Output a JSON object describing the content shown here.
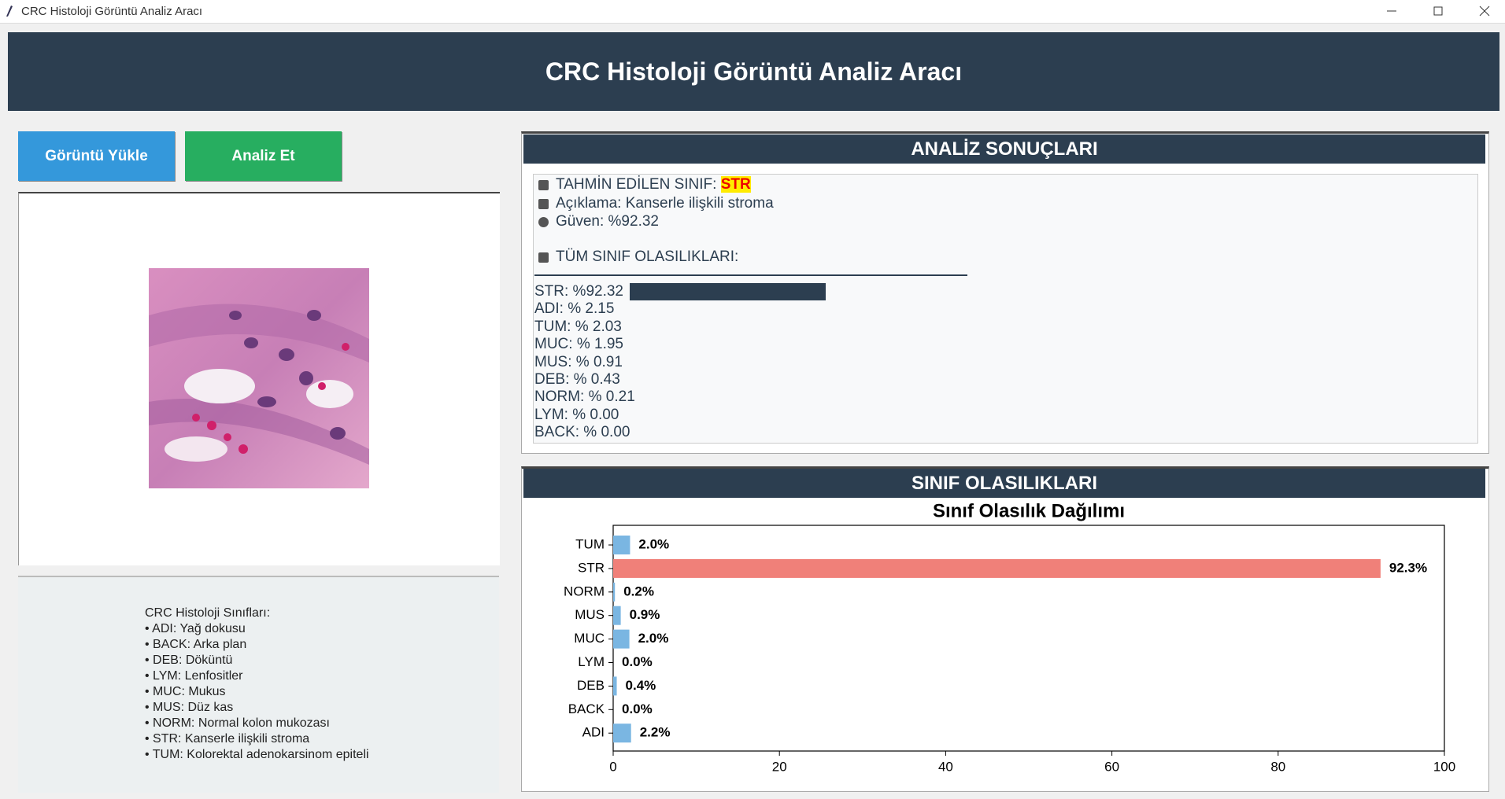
{
  "window": {
    "title": "CRC Histoloji Görüntü Analiz Aracı"
  },
  "header": {
    "title": "CRC Histoloji Görüntü Analiz Aracı"
  },
  "buttons": [
    "Görüntü Yükle",
    "Analiz Et"
  ],
  "class_info": {
    "heading": "CRC Histoloji Sınıfları:",
    "items": [
      "• ADI: Yağ dokusu",
      "• BACK: Arka plan",
      "• DEB: Döküntü",
      "• LYM: Lenfositler",
      "• MUC: Mukus",
      "• MUS: Düz kas",
      "• NORM: Normal kolon mukozası",
      "• STR: Kanserle ilişkili stroma",
      "• TUM: Kolorektal adenokarsinom epiteli"
    ]
  },
  "results": {
    "title": "ANALİZ SONUÇLARI",
    "predicted_label": "TAHMİN EDİLEN SINIF:",
    "predicted_class": "STR",
    "description": "Açıklama: Kanserle ilişkili stroma",
    "confidence": "Güven: %92.32",
    "all_title": "TÜM SINIF OLASILIKLARI:",
    "probabilities": [
      "STR: %92.32",
      "ADI: % 2.15",
      "TUM: % 2.03",
      "MUC: % 1.95",
      "MUS: % 0.91",
      "DEB: % 0.43",
      "NORM: % 0.21",
      "LYM: % 0.00",
      "BACK: % 0.00"
    ]
  },
  "chart_panel": {
    "title": "SINIF OLASILIKLARI"
  },
  "chart_data": {
    "type": "bar",
    "orientation": "horizontal",
    "title": "Sınıf Olasılık Dağılımı",
    "categories": [
      "TUM",
      "STR",
      "NORM",
      "MUS",
      "MUC",
      "LYM",
      "DEB",
      "BACK",
      "ADI"
    ],
    "values": [
      2.03,
      92.32,
      0.21,
      0.91,
      1.95,
      0.0,
      0.43,
      0.0,
      2.15
    ],
    "value_labels": [
      "2.0%",
      "92.3%",
      "0.2%",
      "0.9%",
      "2.0%",
      "0.0%",
      "0.4%",
      "0.0%",
      "2.2%"
    ],
    "colors": [
      "#7ab6e2",
      "#f08079",
      "#7ab6e2",
      "#7ab6e2",
      "#7ab6e2",
      "#7ab6e2",
      "#7ab6e2",
      "#7ab6e2",
      "#7ab6e2"
    ],
    "xlim": [
      0,
      100
    ],
    "xticks": [
      0,
      20,
      40,
      60,
      80,
      100
    ]
  }
}
